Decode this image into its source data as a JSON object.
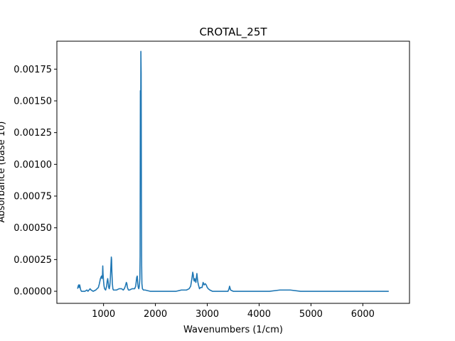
{
  "chart_data": {
    "type": "line",
    "title": "CROTAL_25T",
    "xlabel": "Wavenumbers (1/cm)",
    "ylabel": "Absorbance (base 10)",
    "xlim": [
      100,
      6900
    ],
    "ylim": [
      -9.5e-05,
      0.00197
    ],
    "grid": false,
    "x_ticks": [
      1000,
      2000,
      3000,
      4000,
      5000,
      6000
    ],
    "x_tick_labels": [
      "1000",
      "2000",
      "3000",
      "4000",
      "5000",
      "6000"
    ],
    "y_ticks": [
      0.0,
      0.00025,
      0.0005,
      0.00075,
      0.001,
      0.00125,
      0.0015,
      0.00175
    ],
    "y_tick_labels": [
      "0.00000",
      "0.00025",
      "0.00050",
      "0.00075",
      "0.00100",
      "0.00125",
      "0.00150",
      "0.00175"
    ],
    "series": [
      {
        "color": "#1f77b4",
        "x": [
          500,
          510,
          520,
          530,
          540,
          550,
          560,
          575,
          600,
          640,
          680,
          700,
          720,
          740,
          760,
          800,
          850,
          900,
          920,
          940,
          960,
          970,
          980,
          985,
          990,
          1000,
          1010,
          1020,
          1040,
          1060,
          1070,
          1080,
          1090,
          1100,
          1110,
          1120,
          1130,
          1140,
          1150,
          1155,
          1160,
          1170,
          1180,
          1190,
          1200,
          1250,
          1300,
          1350,
          1380,
          1400,
          1420,
          1440,
          1450,
          1460,
          1480,
          1500,
          1550,
          1600,
          1620,
          1640,
          1650,
          1660,
          1670,
          1680,
          1690,
          1700,
          1705,
          1710,
          1715,
          1720,
          1725,
          1730,
          1735,
          1740,
          1750,
          1770,
          1800,
          1900,
          2000,
          2200,
          2400,
          2500,
          2600,
          2650,
          2680,
          2700,
          2710,
          2720,
          2730,
          2740,
          2750,
          2760,
          2780,
          2800,
          2810,
          2820,
          2830,
          2850,
          2870,
          2900,
          2920,
          2940,
          2960,
          2980,
          3000,
          3020,
          3050,
          3100,
          3200,
          3300,
          3400,
          3410,
          3420,
          3430,
          3450,
          3500,
          3600,
          3800,
          4000,
          4200,
          4400,
          4600,
          4800,
          5000,
          5200,
          5400,
          5600,
          5800,
          6000,
          6200,
          6400,
          6500
        ],
        "y": [
          2e-05,
          4e-05,
          5e-05,
          3e-05,
          5e-05,
          3e-05,
          1e-05,
          0.0,
          0.0,
          0.0,
          1e-05,
          0.0,
          1e-05,
          2e-05,
          1e-05,
          0.0,
          1e-05,
          3e-05,
          6e-05,
          0.0001,
          0.00012,
          0.0001,
          0.00013,
          0.0002,
          0.00014,
          8e-05,
          4e-05,
          2e-05,
          1e-05,
          4e-05,
          8e-05,
          0.0001,
          7e-05,
          3e-05,
          2e-05,
          4e-05,
          9e-05,
          0.00018,
          0.00027,
          0.00025,
          0.00016,
          6e-05,
          2e-05,
          1e-05,
          1e-05,
          1e-05,
          2e-05,
          2e-05,
          1e-05,
          2e-05,
          4e-05,
          7e-05,
          6e-05,
          3e-05,
          1e-05,
          1e-05,
          2e-05,
          2e-05,
          4e-05,
          0.00011,
          0.00012,
          6e-05,
          3e-05,
          2e-05,
          4e-05,
          0.0001,
          0.00028,
          0.00158,
          0.00105,
          0.00189,
          0.00172,
          0.0008,
          0.0002,
          6e-05,
          2e-05,
          1e-05,
          1e-05,
          0.0,
          0.0,
          0.0,
          0.0,
          1e-05,
          1e-05,
          2e-05,
          4e-05,
          9e-05,
          0.00012,
          0.00015,
          0.00013,
          9e-05,
          8e-05,
          0.0001,
          7e-05,
          0.00014,
          0.0001,
          7e-05,
          5e-05,
          2e-05,
          3e-05,
          3e-05,
          7e-05,
          5e-05,
          6e-05,
          5e-05,
          3e-05,
          2e-05,
          1e-05,
          0.0,
          0.0,
          0.0,
          0.0,
          1e-05,
          2e-05,
          4e-05,
          1e-05,
          0.0,
          0.0,
          0.0,
          0.0,
          0.0,
          1e-05,
          1e-05,
          0.0,
          0.0,
          0.0,
          0.0,
          0.0,
          0.0,
          0.0,
          0.0,
          0.0,
          0.0
        ]
      }
    ]
  }
}
